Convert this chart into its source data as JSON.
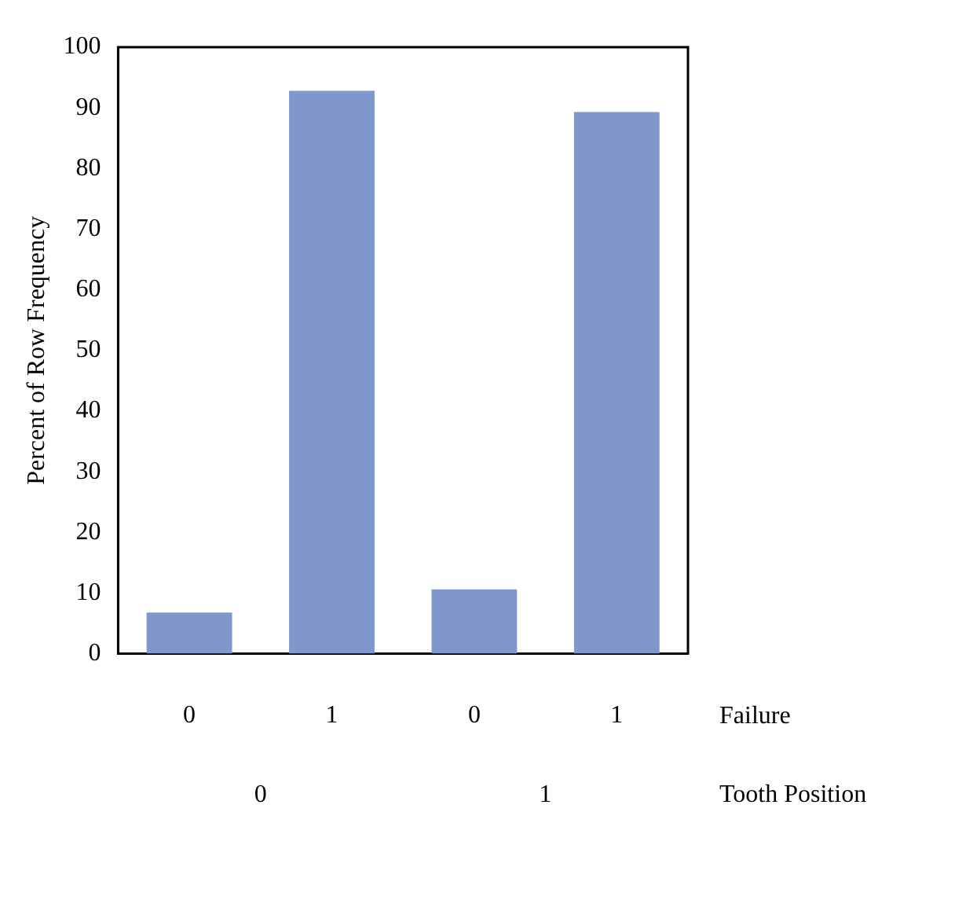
{
  "chart_data": {
    "type": "bar",
    "ylabel": "Percent of Row Frequency",
    "xlabel": "Failure",
    "categories": [
      "0",
      "1",
      "0",
      "1"
    ],
    "values": [
      6.8,
      92.8,
      10.6,
      89.3
    ],
    "color": "#7f97cd",
    "ylim": [
      0,
      100
    ],
    "yticks": [
      0,
      10,
      20,
      30,
      40,
      50,
      60,
      70,
      80,
      90,
      100
    ],
    "grid": false,
    "legend": false,
    "annotations": [
      "0",
      "1",
      "Tooth Position"
    ]
  }
}
